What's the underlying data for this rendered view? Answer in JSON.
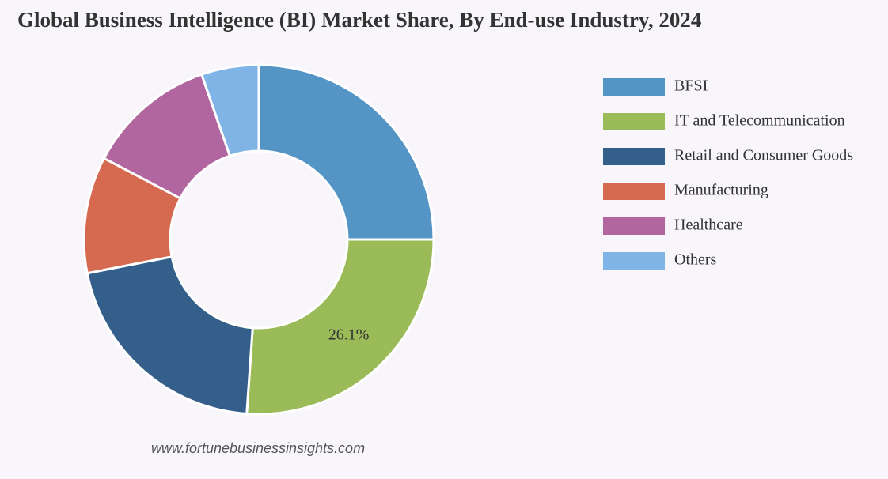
{
  "chart_data": {
    "type": "donut",
    "title": "Global Business Intelligence (BI) Market Share, By End-use Industry, 2024",
    "categories": [
      "BFSI",
      "IT and Telecommunication",
      "Retail and Consumer Goods",
      "Manufacturing",
      "Healthcare",
      "Others"
    ],
    "values": [
      25,
      26.1,
      20.8,
      10.8,
      12,
      5.3
    ],
    "value_labels": [
      null,
      "26.1%",
      null,
      null,
      null,
      null
    ],
    "colors": [
      "#5595c5",
      "#9bbb59",
      "#345f8a",
      "#d66a50",
      "#b2669f",
      "#80b3e6"
    ],
    "legend": "right",
    "source": "www.fortunebusinessinsights.com"
  }
}
